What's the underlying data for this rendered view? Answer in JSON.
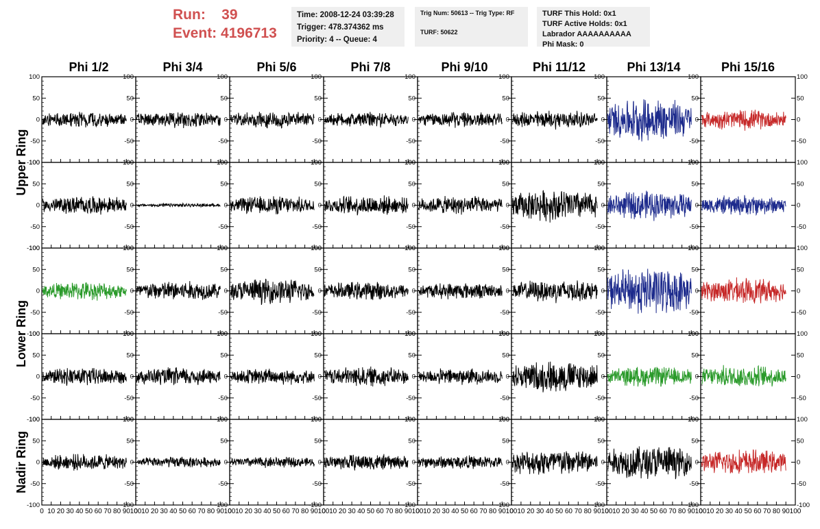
{
  "header": {
    "run_label": "Run:",
    "run_value": "39",
    "event_label": "Event:",
    "event_value": "4196713"
  },
  "info_time": {
    "time": "Time: 2008-12-24 03:39:28",
    "trigger": "Trigger: 478.374362 ms",
    "priority": "Priority: 4 -- Queue: 4"
  },
  "info_trig": {
    "trig": "Trig Num: 50613 -- Trig Type: RF",
    "turf": "TURF: 50622"
  },
  "info_turf": {
    "hold": "TURF This Hold: 0x1",
    "active": "TURF Active Holds: 0x1",
    "labrador": "Labrador AAAAAAAAAA",
    "phimask": "Phi Mask: 0"
  },
  "chart_data": {
    "type": "line",
    "column_titles": [
      "Phi 1/2",
      "Phi 3/4",
      "Phi 5/6",
      "Phi 7/8",
      "Phi 9/10",
      "Phi 11/12",
      "Phi 13/14",
      "Phi 15/16"
    ],
    "row_labels": [
      {
        "text": "Upper Ring",
        "rows": [
          0,
          1
        ]
      },
      {
        "text": "Lower Ring",
        "rows": [
          2,
          3
        ]
      },
      {
        "text": "Nadir Ring",
        "rows": [
          4,
          4
        ]
      }
    ],
    "xlim": [
      0,
      100
    ],
    "ylim": [
      -100,
      100
    ],
    "x_ticks": [
      0,
      10,
      20,
      30,
      40,
      50,
      60,
      70,
      80,
      90,
      100
    ],
    "y_ticks": [
      -100,
      -50,
      0,
      50,
      100
    ],
    "colors": {
      "black": "#000000",
      "blue": "#1c2a8c",
      "red": "#c62828",
      "green": "#2a9a2a"
    },
    "panel_colors": [
      [
        "black",
        "black",
        "black",
        "black",
        "black",
        "black",
        "blue",
        "red"
      ],
      [
        "black",
        "black",
        "black",
        "black",
        "black",
        "black",
        "blue",
        "blue"
      ],
      [
        "green",
        "black",
        "black",
        "black",
        "black",
        "black",
        "blue",
        "red"
      ],
      [
        "black",
        "black",
        "black",
        "black",
        "black",
        "black",
        "green",
        "green"
      ],
      [
        "black",
        "black",
        "black",
        "black",
        "black",
        "black",
        "black",
        "red"
      ]
    ],
    "panel_amplitudes": [
      [
        18,
        18,
        18,
        17,
        17,
        20,
        48,
        22
      ],
      [
        20,
        4,
        20,
        22,
        20,
        35,
        32,
        22
      ],
      [
        20,
        22,
        28,
        20,
        18,
        25,
        52,
        28
      ],
      [
        20,
        20,
        18,
        22,
        18,
        35,
        22,
        25
      ],
      [
        18,
        12,
        12,
        18,
        15,
        30,
        38,
        28
      ]
    ]
  }
}
